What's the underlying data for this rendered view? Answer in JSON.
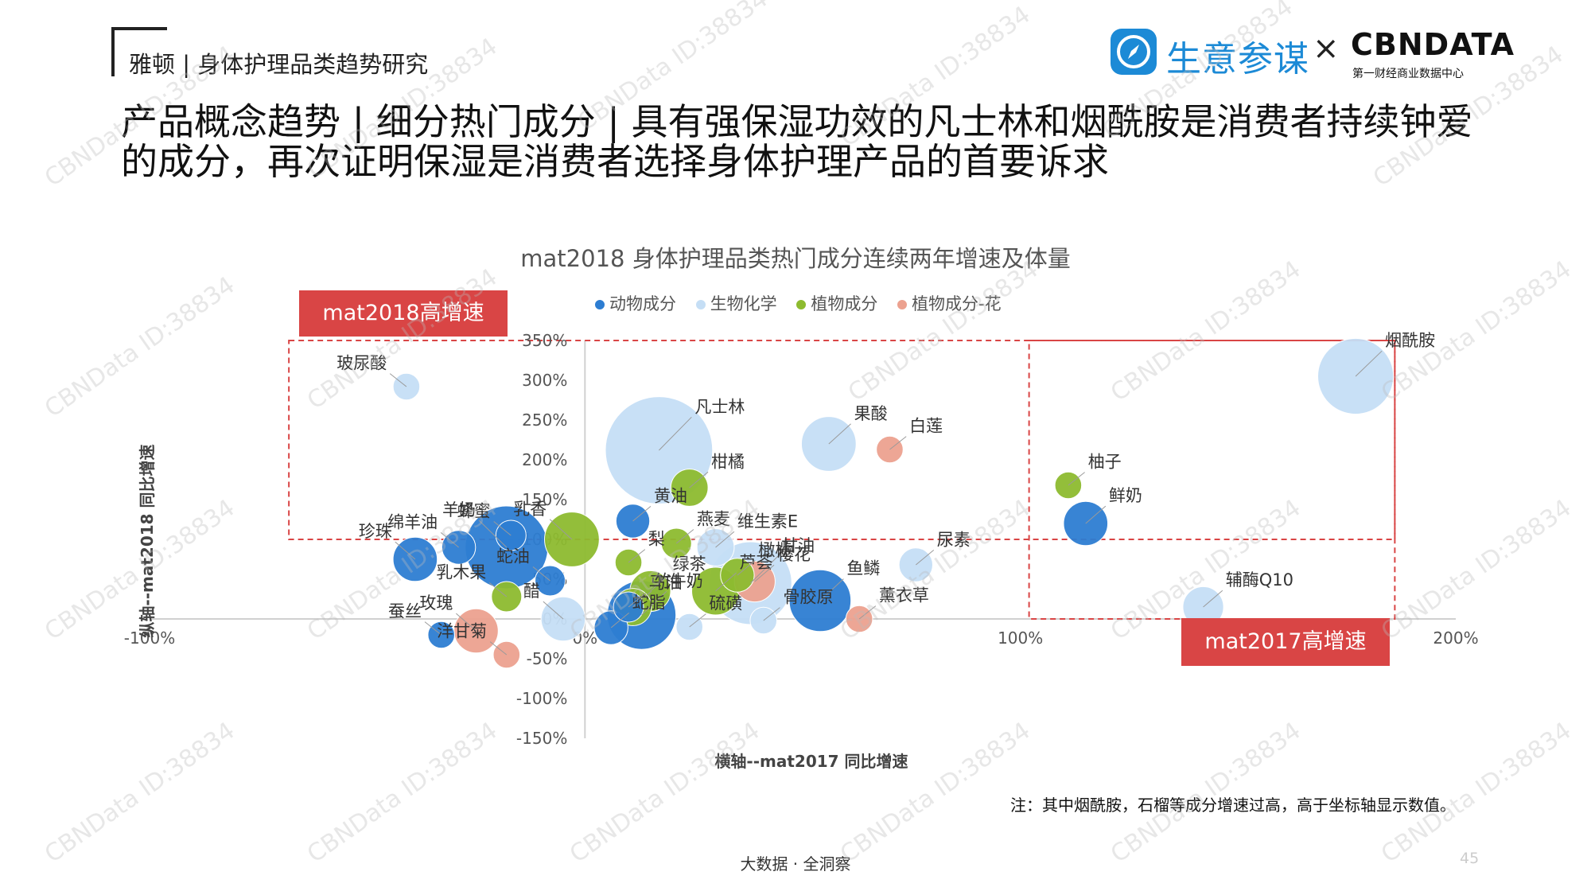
{
  "header": {
    "brand": "雅顿 | 身体护理品类趋势研究",
    "logo_name": "生意参谋",
    "logo_x": "×",
    "logo_cbn": "CBNDATA",
    "logo_cbn_sub": "第一财经商业数据中心"
  },
  "headline": "产品概念趋势 | 细分热门成分 | 具有强保湿功效的凡士林和烟酰胺是消费者持续钟爱的成分，再次证明保湿是消费者选择身体护理产品的首要诉求",
  "tags": {
    "high2018": "mat2018高增速",
    "high2017": "mat2017高增速"
  },
  "legend": [
    {
      "label": "动物成分",
      "color": "#2d7dd2"
    },
    {
      "label": "生物化学",
      "color": "#c5def5"
    },
    {
      "label": "植物成分",
      "color": "#8dbb2f"
    },
    {
      "label": "植物成分-花",
      "color": "#eca18f"
    }
  ],
  "chart_data": {
    "type": "scatter",
    "title": "mat2018 身体护理品类热门成分连续两年增速及体量",
    "xlabel": "横轴--mat2017 同比增速",
    "ylabel": "纵轴--mat2018 同比增速",
    "xlim": [
      -100,
      200
    ],
    "ylim": [
      -150,
      350
    ],
    "x_ticks": [
      "-100%",
      "0%",
      "100%",
      "200%"
    ],
    "y_ticks": [
      "350%",
      "300%",
      "250%",
      "200%",
      "150%",
      "100%",
      "50%",
      "0%",
      "-50%",
      "-100%",
      "-150%"
    ],
    "grid": false,
    "legend_position": "top",
    "quadrant_regions": [
      {
        "label": "mat2018高增速",
        "x": [
          -68,
          186
        ],
        "y": [
          100,
          350
        ]
      },
      {
        "label": "mat2017高增速",
        "x": [
          102,
          186
        ],
        "y": [
          0,
          350
        ]
      }
    ],
    "series": [
      {
        "name": "动物成分",
        "color": "#2d7dd2",
        "points": [
          {
            "label": "蜂蜜",
            "x": -17,
            "y": 105,
            "size": 0.25
          },
          {
            "label": "羊奶",
            "x": -18,
            "y": 90,
            "size": 1.0
          },
          {
            "label": "绵羊油",
            "x": -29,
            "y": 90,
            "size": 0.3
          },
          {
            "label": "珍珠",
            "x": -39,
            "y": 75,
            "size": 0.45
          },
          {
            "label": "蛇油",
            "x": -8,
            "y": 48,
            "size": 0.25
          },
          {
            "label": "蚕丝",
            "x": -33,
            "y": -20,
            "size": 0.2
          },
          {
            "label": "黄油",
            "x": 11,
            "y": 123,
            "size": 0.3
          },
          {
            "label": "马油",
            "x": 10,
            "y": 15,
            "size": 0.25
          },
          {
            "label": "牛奶",
            "x": 13,
            "y": 5,
            "size": 0.8
          },
          {
            "label": "蛇脂",
            "x": 6,
            "y": -11,
            "size": 0.3
          },
          {
            "label": "鱼鳞",
            "x": 54,
            "y": 23,
            "size": 0.7
          },
          {
            "label": "鲜奶",
            "x": 115,
            "y": 120,
            "size": 0.45
          }
        ]
      },
      {
        "name": "生物化学",
        "color": "#c5def5",
        "points": [
          {
            "label": "玻尿酸",
            "x": -41,
            "y": 292,
            "size": 0.2
          },
          {
            "label": "凡士林",
            "x": 17,
            "y": 212,
            "size": 1.35
          },
          {
            "label": "果酸",
            "x": 56,
            "y": 220,
            "size": 0.6
          },
          {
            "label": "维生素E",
            "x": 30,
            "y": 90,
            "size": 0.35
          },
          {
            "label": "甘油",
            "x": 38,
            "y": 45,
            "size": 1.0
          },
          {
            "label": "醋",
            "x": -5,
            "y": 0,
            "size": 0.45
          },
          {
            "label": "硫磺",
            "x": 24,
            "y": -10,
            "size": 0.2
          },
          {
            "label": "骨胶原",
            "x": 41,
            "y": -2,
            "size": 0.2
          },
          {
            "label": "尿素",
            "x": 76,
            "y": 68,
            "size": 0.3
          },
          {
            "label": "辅酶Q10",
            "x": 142,
            "y": 15,
            "size": 0.4
          },
          {
            "label": "烟酰胺",
            "x": 177,
            "y": 305,
            "size": 0.9
          }
        ]
      },
      {
        "name": "植物成分",
        "color": "#8dbb2f",
        "points": [
          {
            "label": "乳香",
            "x": -3,
            "y": 100,
            "size": 0.6
          },
          {
            "label": "乳木果",
            "x": -18,
            "y": 28,
            "size": 0.25
          },
          {
            "label": "柑橘",
            "x": 24,
            "y": 165,
            "size": 0.35
          },
          {
            "label": "燕麦",
            "x": 21,
            "y": 95,
            "size": 0.25
          },
          {
            "label": "梨",
            "x": 10,
            "y": 71,
            "size": 0.2
          },
          {
            "label": "绿茶",
            "x": 15,
            "y": 35,
            "size": 0.4
          },
          {
            "label": "竹",
            "x": 11,
            "y": 15,
            "size": 0.35
          },
          {
            "label": "芦荟",
            "x": 30,
            "y": 35,
            "size": 0.5
          },
          {
            "label": "橄榄",
            "x": 35,
            "y": 55,
            "size": 0.3
          },
          {
            "label": "柚子",
            "x": 111,
            "y": 168,
            "size": 0.2
          }
        ]
      },
      {
        "name": "植物成分-花",
        "color": "#eca18f",
        "points": [
          {
            "label": "白莲",
            "x": 70,
            "y": 213,
            "size": 0.2
          },
          {
            "label": "樱花",
            "x": 39,
            "y": 47,
            "size": 0.4
          },
          {
            "label": "薰衣草",
            "x": 63,
            "y": 0,
            "size": 0.2
          },
          {
            "label": "玫瑰",
            "x": -25,
            "y": -15,
            "size": 0.45
          },
          {
            "label": "洋甘菊",
            "x": -18,
            "y": -45,
            "size": 0.2
          }
        ]
      }
    ]
  },
  "note": "注：其中烟酰胺，石榴等成分增速过高，高于坐标轴显示数值。",
  "footer": "大数据 · 全洞察",
  "page_number": "45",
  "watermark_text": "CBNData ID:38834"
}
